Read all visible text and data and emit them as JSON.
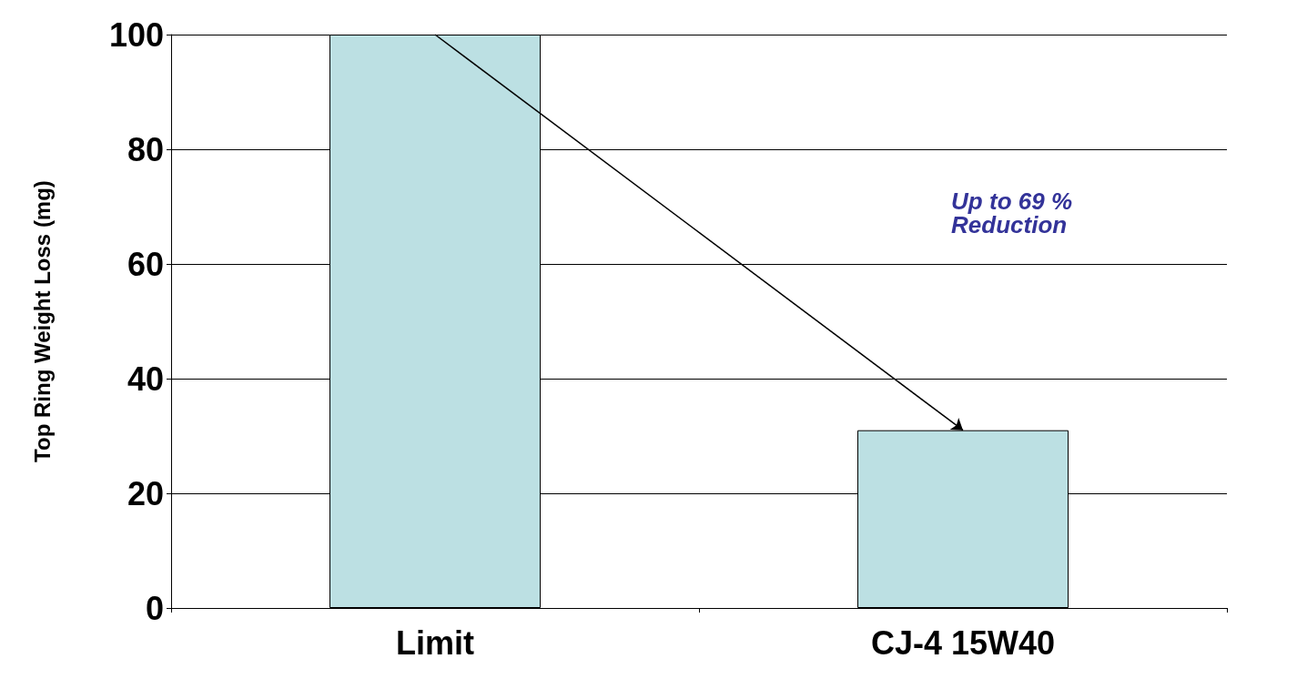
{
  "chart_data": {
    "type": "bar",
    "ylabel": "Top Ring Weight Loss (mg)",
    "categories": [
      "Limit",
      "CJ-4 15W40"
    ],
    "values": [
      100,
      31
    ],
    "color": "#bce0e3",
    "ylim": [
      0,
      100
    ],
    "yticks": [
      0,
      20,
      40,
      60,
      80,
      100
    ],
    "grid": "y",
    "annotations": [
      "Up to 69 %\nReduction"
    ]
  }
}
